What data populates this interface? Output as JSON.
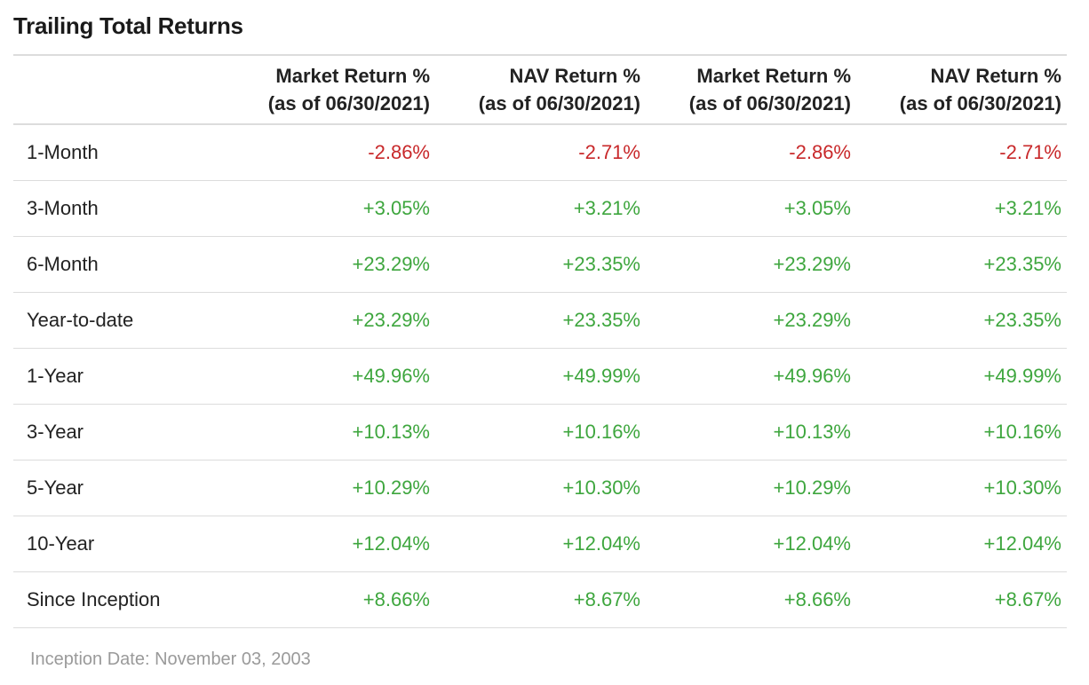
{
  "title": "Trailing Total Returns",
  "colors": {
    "negative": "#c8282a",
    "positive": "#3ea63e",
    "divider": "#dcdcdc",
    "footnote": "#9a9a9a"
  },
  "table": {
    "columns": [
      {
        "label": "Market Return %",
        "sub": "(as of 06/30/2021)"
      },
      {
        "label": "NAV Return %",
        "sub": "(as of 06/30/2021)"
      },
      {
        "label": "Market Return %",
        "sub": "(as of 06/30/2021)"
      },
      {
        "label": "NAV Return %",
        "sub": "(as of 06/30/2021)"
      }
    ],
    "rows": [
      {
        "period": "1-Month",
        "values": [
          "-2.86%",
          "-2.71%",
          "-2.86%",
          "-2.71%"
        ]
      },
      {
        "period": "3-Month",
        "values": [
          "+3.05%",
          "+3.21%",
          "+3.05%",
          "+3.21%"
        ]
      },
      {
        "period": "6-Month",
        "values": [
          "+23.29%",
          "+23.35%",
          "+23.29%",
          "+23.35%"
        ]
      },
      {
        "period": "Year-to-date",
        "values": [
          "+23.29%",
          "+23.35%",
          "+23.29%",
          "+23.35%"
        ]
      },
      {
        "period": "1-Year",
        "values": [
          "+49.96%",
          "+49.99%",
          "+49.96%",
          "+49.99%"
        ]
      },
      {
        "period": "3-Year",
        "values": [
          "+10.13%",
          "+10.16%",
          "+10.13%",
          "+10.16%"
        ]
      },
      {
        "period": "5-Year",
        "values": [
          "+10.29%",
          "+10.30%",
          "+10.29%",
          "+10.30%"
        ]
      },
      {
        "period": "10-Year",
        "values": [
          "+12.04%",
          "+12.04%",
          "+12.04%",
          "+12.04%"
        ]
      },
      {
        "period": "Since Inception",
        "values": [
          "+8.66%",
          "+8.67%",
          "+8.66%",
          "+8.67%"
        ]
      }
    ]
  },
  "footnote": "Inception Date: November 03, 2003"
}
